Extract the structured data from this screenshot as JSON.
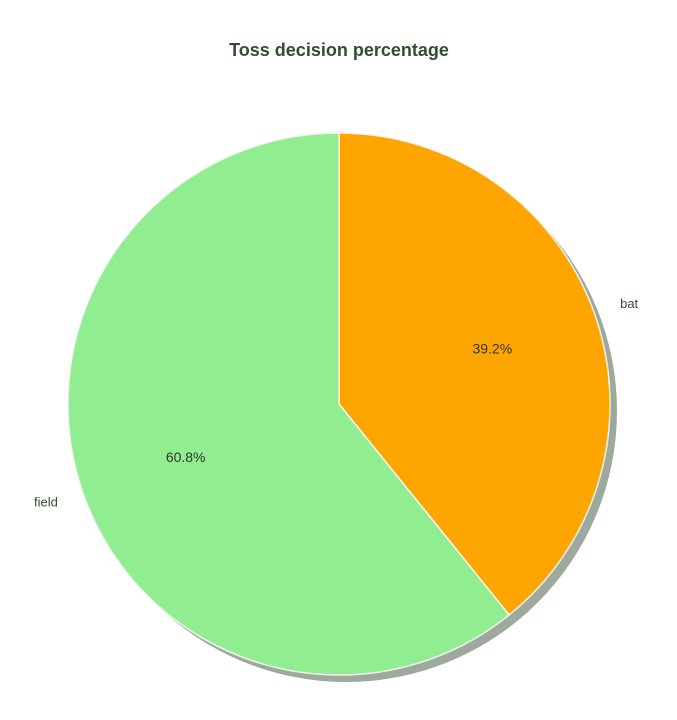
{
  "chart_data": {
    "type": "pie",
    "title": "Toss decision percentage",
    "start_angle_deg": 90,
    "counterclock": false,
    "shadow": true,
    "slices": [
      {
        "label": "bat",
        "value": 39.2,
        "pct_label": "39.2%",
        "color": "#ffa500"
      },
      {
        "label": "field",
        "value": 60.8,
        "pct_label": "60.8%",
        "color": "#90ee90"
      }
    ]
  }
}
